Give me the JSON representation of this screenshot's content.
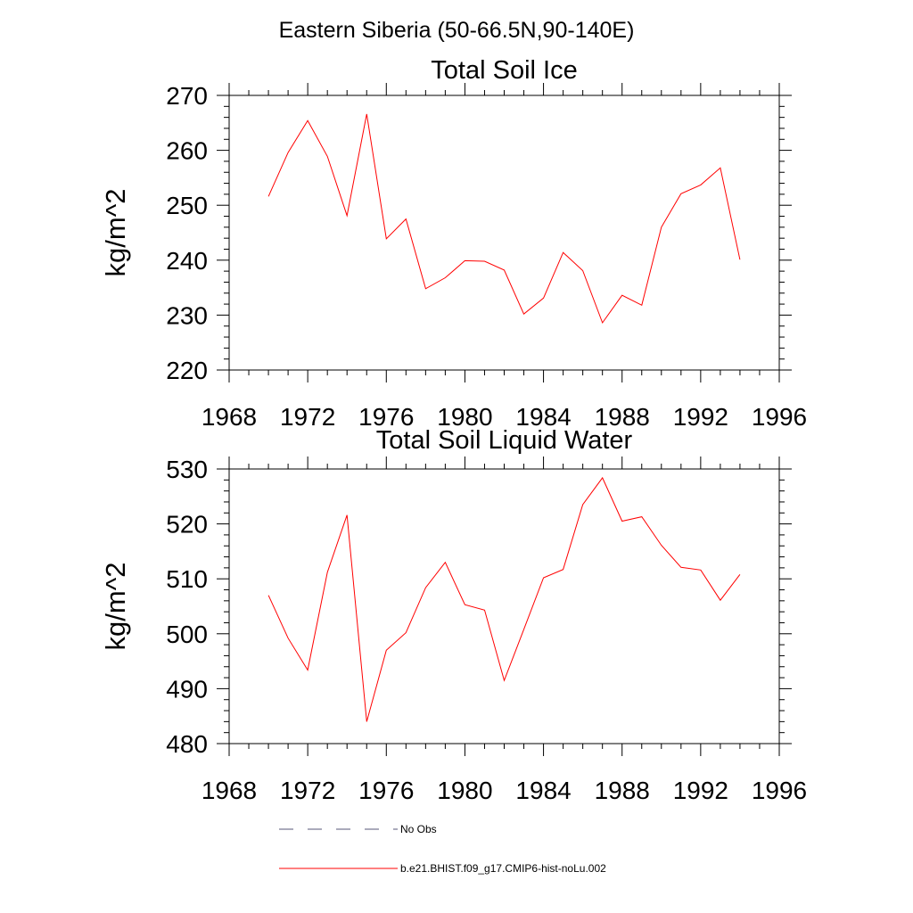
{
  "figure": {
    "suptitle": "Eastern Siberia (50-66.5N,90-140E)"
  },
  "chart_data": [
    {
      "type": "line",
      "title": "Total Soil Ice",
      "xlabel": "",
      "ylabel": "kg/m^2",
      "xlim": [
        1968,
        1996
      ],
      "ylim": [
        220,
        270
      ],
      "xticks": [
        1968,
        1972,
        1976,
        1980,
        1984,
        1988,
        1992,
        1996
      ],
      "yticks": [
        220,
        230,
        240,
        250,
        260,
        270
      ],
      "grid": false,
      "series": [
        {
          "name": "b.e21.BHIST.f09_g17.CMIP6-hist-noLu.002",
          "color": "#ff0000",
          "x": [
            1970,
            1971,
            1972,
            1973,
            1974,
            1975,
            1976,
            1977,
            1978,
            1979,
            1980,
            1981,
            1982,
            1983,
            1984,
            1985,
            1986,
            1987,
            1988,
            1989,
            1990,
            1991,
            1992,
            1993,
            1994
          ],
          "values": [
            251.6,
            259.6,
            265.4,
            258.9,
            248.1,
            266.6,
            243.9,
            247.5,
            234.8,
            236.8,
            239.9,
            239.8,
            238.2,
            230.2,
            233.1,
            241.4,
            238.1,
            228.6,
            233.6,
            231.8,
            246.0,
            252.1,
            253.7,
            256.8,
            240.1
          ]
        }
      ]
    },
    {
      "type": "line",
      "title": "Total Soil Liquid Water",
      "xlabel": "",
      "ylabel": "kg/m^2",
      "xlim": [
        1968,
        1996
      ],
      "ylim": [
        480,
        530
      ],
      "xticks": [
        1968,
        1972,
        1976,
        1980,
        1984,
        1988,
        1992,
        1996
      ],
      "yticks": [
        480,
        490,
        500,
        510,
        520,
        530
      ],
      "grid": false,
      "series": [
        {
          "name": "b.e21.BHIST.f09_g17.CMIP6-hist-noLu.002",
          "color": "#ff0000",
          "x": [
            1970,
            1971,
            1972,
            1973,
            1974,
            1975,
            1976,
            1977,
            1978,
            1979,
            1980,
            1981,
            1982,
            1983,
            1984,
            1985,
            1986,
            1987,
            1988,
            1989,
            1990,
            1991,
            1992,
            1993,
            1994
          ],
          "values": [
            507.0,
            499.2,
            493.4,
            511.2,
            521.6,
            484.0,
            497.0,
            500.2,
            508.4,
            513.0,
            505.3,
            504.3,
            491.5,
            500.8,
            510.2,
            511.7,
            523.5,
            528.4,
            520.5,
            521.3,
            516.1,
            512.1,
            511.6,
            506.1,
            510.8
          ]
        }
      ]
    }
  ],
  "legend": {
    "placement": "bottom",
    "entries": [
      {
        "label": "No Obs",
        "style": "dashed",
        "color": "#555577"
      },
      {
        "label": "b.e21.BHIST.f09_g17.CMIP6-hist-noLu.002",
        "style": "solid",
        "color": "#ff0000"
      }
    ]
  }
}
